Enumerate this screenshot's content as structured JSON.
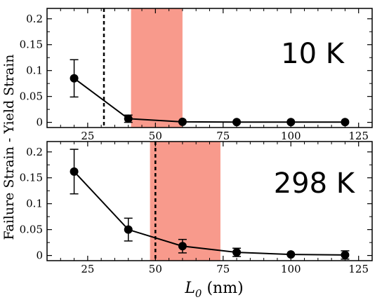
{
  "chart_data": [
    {
      "type": "line",
      "panel": "top",
      "annotation": "10 K",
      "x": [
        20,
        40,
        60,
        80,
        100,
        120
      ],
      "series": [
        {
          "values": [
            0.085,
            0.007,
            0.001,
            0.0005,
            0.0005,
            0.0005
          ],
          "errors": [
            0.036,
            0.007,
            0.001,
            0.0005,
            0.0005,
            0.0005
          ]
        }
      ],
      "shaded_range": [
        41,
        60
      ],
      "shade_color": "#f89a8c",
      "dashed_line_x": 31,
      "xlim": [
        10,
        130
      ],
      "ylim": [
        -0.01,
        0.22
      ],
      "xticks": [
        "25",
        "50",
        "75",
        "100",
        "125"
      ],
      "yticks": [
        "0",
        "0.05",
        "0.1",
        "0.15",
        "0.2"
      ],
      "grid": false
    },
    {
      "type": "line",
      "panel": "bottom",
      "annotation": "298 K",
      "x": [
        20,
        40,
        60,
        80,
        100,
        120
      ],
      "series": [
        {
          "values": [
            0.162,
            0.05,
            0.018,
            0.006,
            0.002,
            0.001
          ],
          "errors": [
            0.043,
            0.022,
            0.013,
            0.008,
            0.004,
            0.008
          ]
        }
      ],
      "shaded_range": [
        48,
        74
      ],
      "shade_color": "#f89a8c",
      "dashed_line_x": 50,
      "xlim": [
        10,
        130
      ],
      "ylim": [
        -0.01,
        0.22
      ],
      "xticks": [
        "25",
        "50",
        "75",
        "100",
        "125"
      ],
      "yticks": [
        "0",
        "0.05",
        "0.1",
        "0.15",
        "0.2"
      ],
      "grid": false
    }
  ],
  "ylabel": "Failure Strain - Yield Strain",
  "xlabel_main": "L",
  "xlabel_sub": "0",
  "xlabel_unit": " (nm)"
}
